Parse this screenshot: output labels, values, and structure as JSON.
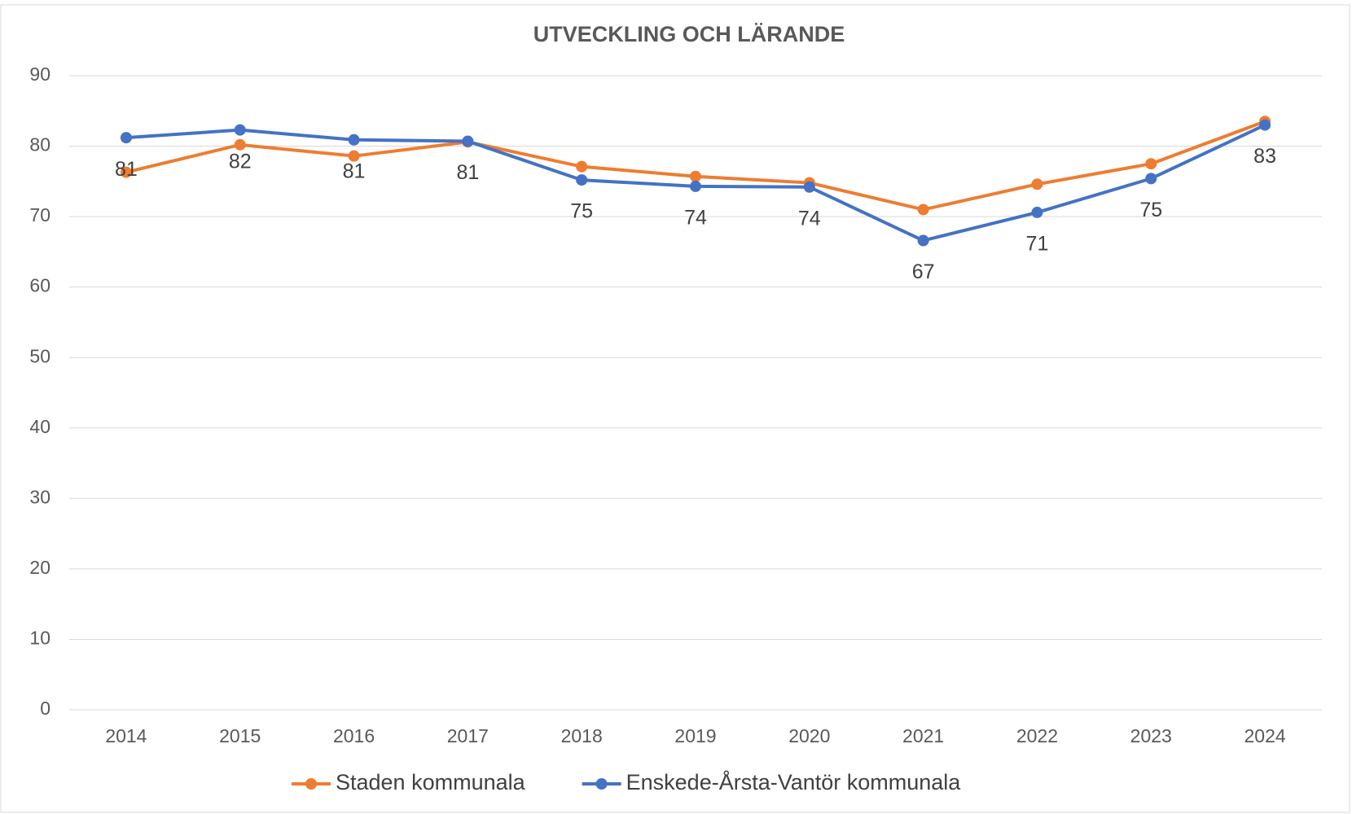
{
  "chart_data": {
    "type": "line",
    "title": "UTVECKLING OCH LÄRANDE",
    "categories": [
      "2014",
      "2015",
      "2016",
      "2017",
      "2018",
      "2019",
      "2020",
      "2021",
      "2022",
      "2023",
      "2024"
    ],
    "series": [
      {
        "name": "Staden kommunala",
        "color": "#ed7d31",
        "values": [
          76.3,
          80.2,
          78.6,
          80.6,
          77.1,
          75.7,
          74.8,
          71.0,
          74.6,
          77.5,
          83.5
        ]
      },
      {
        "name": "Enskede-Årsta-Vantör kommunala",
        "color": "#4472c4",
        "values": [
          81.2,
          82.3,
          80.9,
          80.7,
          75.2,
          74.3,
          74.2,
          66.6,
          70.6,
          75.4,
          83.0
        ],
        "value_labels": [
          "81",
          "82",
          "81",
          "81",
          "75",
          "74",
          "74",
          "67",
          "71",
          "75",
          "83"
        ]
      }
    ],
    "ylim": [
      0,
      90
    ],
    "yticks": [
      0,
      10,
      20,
      30,
      40,
      50,
      60,
      70,
      80,
      90
    ],
    "grid": true,
    "legend": "bottom"
  }
}
